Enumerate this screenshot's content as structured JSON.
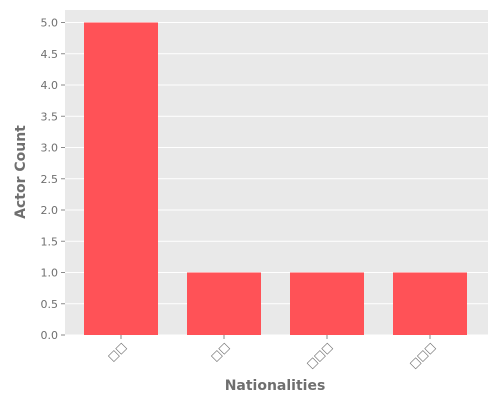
{
  "chart_data": {
    "type": "bar",
    "title": "",
    "xlabel": "Nationalities",
    "ylabel": "Actor Count",
    "categories": [
      "□□",
      "□□",
      "□□□",
      "□□□"
    ],
    "values": [
      5,
      1,
      1,
      1
    ],
    "ylim": [
      0,
      5.2
    ],
    "yticks": [
      0.0,
      0.5,
      1.0,
      1.5,
      2.0,
      2.5,
      3.0,
      3.5,
      4.0,
      4.5,
      5.0
    ],
    "ytick_labels": [
      "0.0",
      "0.5",
      "1.0",
      "1.5",
      "2.0",
      "2.5",
      "3.0",
      "3.5",
      "4.0",
      "4.5",
      "5.0"
    ],
    "grid": true,
    "legend": "none",
    "colors": {
      "bar": "#ff5257",
      "background": "#e9e9e9",
      "grid": "#ffffff",
      "text": "#6f6f6f"
    }
  }
}
